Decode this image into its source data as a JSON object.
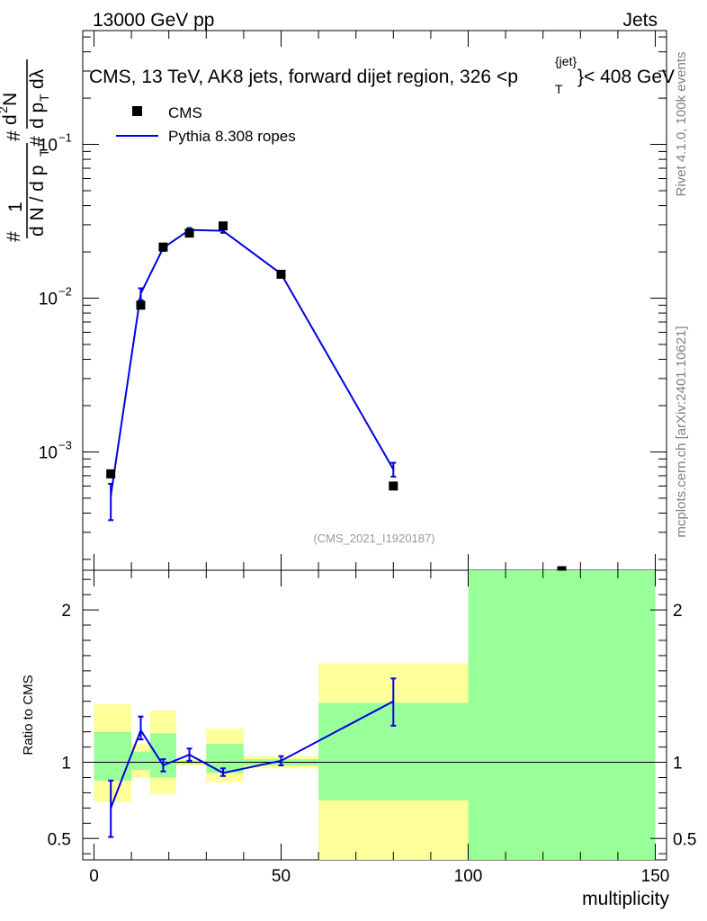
{
  "header": {
    "left": "13000 GeV pp",
    "right": "Jets"
  },
  "chart_data": [
    {
      "type": "scatter",
      "panel": "main",
      "title": "CMS, 13 TeV, AK8 jets, forward dijet region, 326 <p_T^{jet}< 408 GeV",
      "title_text": "CMS, 13 TeV, AK8 jets, forward dijet region, 326 <p",
      "title_super": "{jet}",
      "title_sub": "T",
      "title_tail": "}< 408 GeV",
      "ylabel_parts": [
        "#",
        "1",
        "d N / d p",
        "T",
        "#",
        "d",
        "2",
        "N",
        "#",
        "d p",
        "T",
        "dλ"
      ],
      "yscale": "log",
      "ylim": [
        0.00017,
        0.55
      ],
      "y_ticks": [
        {
          "value": 0.1,
          "base": "10",
          "exp": "−1"
        },
        {
          "value": 0.01,
          "base": "10",
          "exp": "−2"
        },
        {
          "value": 0.001,
          "base": "10",
          "exp": "−3"
        }
      ],
      "xlim": [
        -3,
        153
      ],
      "legend_position": "top-left",
      "series": [
        {
          "name": "CMS",
          "style": "markers",
          "color": "#000000",
          "points": [
            {
              "x": 4.5,
              "y": 0.00072
            },
            {
              "x": 12.5,
              "y": 0.009
            },
            {
              "x": 18.5,
              "y": 0.0215
            },
            {
              "x": 25.5,
              "y": 0.0265
            },
            {
              "x": 34.5,
              "y": 0.0295
            },
            {
              "x": 50,
              "y": 0.0143
            },
            {
              "x": 80,
              "y": 0.0006
            },
            {
              "x": 125,
              "y": 0.00015
            }
          ]
        },
        {
          "name": "Pythia 8.308 ropes",
          "style": "line",
          "color": "#0000e6",
          "points": [
            {
              "x": 4.5,
              "y": 0.00052,
              "ylo": 0.00036,
              "yhi": 0.00062
            },
            {
              "x": 12.5,
              "y": 0.0107,
              "ylo": 0.0097,
              "yhi": 0.0116
            },
            {
              "x": 18.5,
              "y": 0.0212,
              "ylo": 0.0203,
              "yhi": 0.0221
            },
            {
              "x": 25.5,
              "y": 0.0278,
              "ylo": 0.027,
              "yhi": 0.0286
            },
            {
              "x": 34.5,
              "y": 0.0274,
              "ylo": 0.0266,
              "yhi": 0.0282
            },
            {
              "x": 50,
              "y": 0.0144,
              "ylo": 0.014,
              "yhi": 0.0148
            },
            {
              "x": 80,
              "y": 0.00077,
              "ylo": 0.00069,
              "yhi": 0.00085
            }
          ]
        }
      ],
      "watermark": "(CMS_2021_I1920187)",
      "side_label_top": "Rivet 4.1.0,  100k events",
      "side_label_bottom": "mcplots.cern.ch [arXiv:2401.10621]"
    },
    {
      "type": "line",
      "panel": "ratio",
      "ylabel": "Ratio to CMS",
      "xlabel": "multiplicity",
      "ylim": [
        0.36,
        2.26
      ],
      "xlim": [
        -3,
        153
      ],
      "x_ticks": [
        0,
        50,
        100,
        150
      ],
      "y_ticks": [
        0.5,
        1,
        2
      ],
      "y_tick_labels": [
        "0.5",
        "1",
        "2"
      ],
      "reference": 1,
      "bands": [
        {
          "x0": 0,
          "x1": 10,
          "yellow": [
            0.74,
            1.38
          ],
          "green": [
            0.88,
            1.2
          ]
        },
        {
          "x0": 10,
          "x1": 15,
          "yellow": [
            0.9,
            1.12
          ],
          "green": [
            0.95,
            1.07
          ]
        },
        {
          "x0": 15,
          "x1": 22,
          "yellow": [
            0.79,
            1.34
          ],
          "green": [
            0.9,
            1.19
          ]
        },
        {
          "x0": 22,
          "x1": 30,
          "yellow": [
            0.98,
            1.02
          ],
          "green": [
            0.99,
            1.01
          ]
        },
        {
          "x0": 30,
          "x1": 40,
          "yellow": [
            0.87,
            1.22
          ],
          "green": [
            0.93,
            1.12
          ]
        },
        {
          "x0": 40,
          "x1": 60,
          "yellow": [
            0.96,
            1.04
          ],
          "green": [
            0.98,
            1.02
          ]
        },
        {
          "x0": 60,
          "x1": 100,
          "yellow": [
            0.36,
            1.65
          ],
          "green": [
            0.75,
            1.39
          ]
        },
        {
          "x0": 100,
          "x1": 150,
          "yellow": [
            0.36,
            2.26
          ],
          "green": [
            0.36,
            2.26
          ]
        }
      ],
      "series": [
        {
          "name": "Pythia 8.308 ropes / CMS",
          "color": "#0000e6",
          "points": [
            {
              "x": 4.5,
              "y": 0.7,
              "ylo": 0.51,
              "yhi": 0.88
            },
            {
              "x": 12.5,
              "y": 1.21,
              "ylo": 1.15,
              "yhi": 1.3
            },
            {
              "x": 18.5,
              "y": 0.98,
              "ylo": 0.94,
              "yhi": 1.02
            },
            {
              "x": 25.5,
              "y": 1.05,
              "ylo": 1.01,
              "yhi": 1.09
            },
            {
              "x": 34.5,
              "y": 0.93,
              "ylo": 0.91,
              "yhi": 0.96
            },
            {
              "x": 50,
              "y": 1.01,
              "ylo": 0.98,
              "yhi": 1.04
            },
            {
              "x": 80,
              "y": 1.4,
              "ylo": 1.24,
              "yhi": 1.55
            }
          ]
        }
      ]
    }
  ],
  "colors": {
    "data": "#000000",
    "mc": "#0000e6",
    "band_yellow": "#ffff99",
    "band_green": "#99ff99"
  }
}
